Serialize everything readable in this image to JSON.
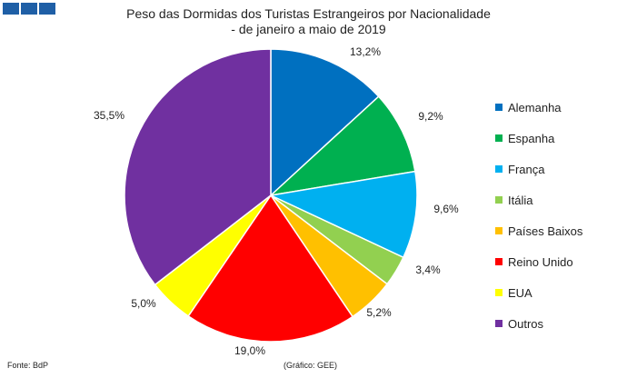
{
  "chart_data": {
    "type": "pie",
    "title": "Peso das Dormidas dos Turistas Estrangeiros por Nacionalidade",
    "subtitle": "- de janeiro a maio de 2019",
    "slices": [
      {
        "label": "Alemanha",
        "value": 13.2,
        "display": "13,2%",
        "color": "#0070c0"
      },
      {
        "label": "Espanha",
        "value": 9.2,
        "display": "9,2%",
        "color": "#00b050"
      },
      {
        "label": "França",
        "value": 9.6,
        "display": "9,6%",
        "color": "#00b0f0"
      },
      {
        "label": "Itália",
        "value": 3.4,
        "display": "3,4%",
        "color": "#92d050"
      },
      {
        "label": "Países Baixos",
        "value": 5.2,
        "display": "5,2%",
        "color": "#ffc000"
      },
      {
        "label": "Reino Unido",
        "value": 19.0,
        "display": "19,0%",
        "color": "#ff0000"
      },
      {
        "label": "EUA",
        "value": 5.0,
        "display": "5,0%",
        "color": "#ffff00"
      },
      {
        "label": "Outros",
        "value": 35.5,
        "display": "35,5%",
        "color": "#7030a0"
      }
    ],
    "legend_position": "right"
  },
  "footer": {
    "source": "Fonte: BdP",
    "credit": "(Gráfico: GEE)"
  }
}
